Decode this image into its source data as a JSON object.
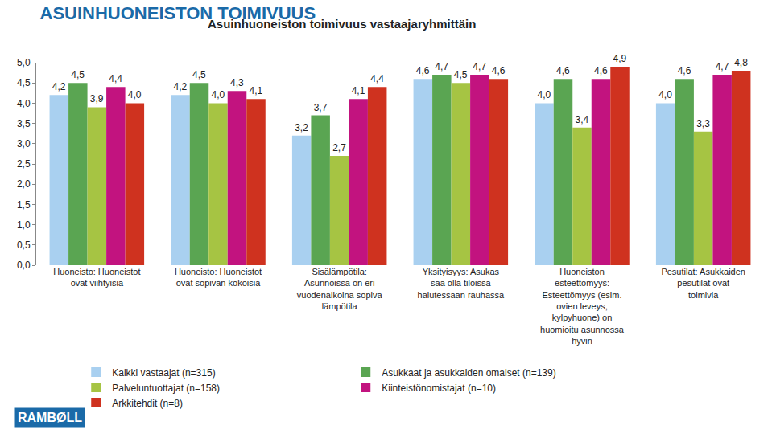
{
  "chart_data": {
    "type": "bar",
    "title": "ASUINHUONEISTON TOIMIVUUS",
    "subtitle": "Asuinhuoneiston toimivuus vastaajaryhmittäin",
    "categories": [
      "Huoneisto: Huoneistot ovat viihtyisiä",
      "Huoneisto: Huoneistot ovat sopivan kokoisia",
      "Sisälämpötila: Asunnoissa on eri vuodenaikoina sopiva lämpötila",
      "Yksityisyys: Asukas saa olla tiloissa halutessaan rauhassa",
      "Huoneiston esteettömyys: Esteettömyys (esim. ovien leveys, kylpyhuone) on huomioitu asunnossa hyvin",
      "Pesutilat: Asukkaiden pesutilat ovat toimivia"
    ],
    "series": [
      {
        "name": "Kaikki vastaajat (n=315)",
        "color": "#a9d0f0",
        "values": [
          4.2,
          4.2,
          3.2,
          4.6,
          4.0,
          4.0
        ],
        "value_labels": [
          "4,2",
          "4,2",
          "3,2",
          "4,6",
          "4,0",
          "4,0"
        ]
      },
      {
        "name": "Asukkaat ja asukkaiden omaiset (n=139)",
        "color": "#5aa552",
        "values": [
          4.5,
          4.5,
          3.7,
          4.7,
          4.6,
          4.6
        ],
        "value_labels": [
          "4,5",
          "4,5",
          "3,7",
          "4,7",
          "4,6",
          "4,6"
        ]
      },
      {
        "name": "Palveluntuottajat (n=158)",
        "color": "#a6c443",
        "values": [
          3.9,
          4.0,
          2.7,
          4.5,
          3.4,
          3.3
        ],
        "value_labels": [
          "3,9",
          "4,0",
          "2,7",
          "4,5",
          "3,4",
          "3,3"
        ]
      },
      {
        "name": "Kiinteistönomistajat (n=10)",
        "color": "#c2137f",
        "values": [
          4.4,
          4.3,
          4.1,
          4.7,
          4.6,
          4.7
        ],
        "value_labels": [
          "4,4",
          "4,3",
          "4,1",
          "4,7",
          "4,6",
          "4,7"
        ]
      },
      {
        "name": "Arkkitehdit (n=8)",
        "color": "#cf321f",
        "values": [
          4.0,
          4.1,
          4.4,
          4.6,
          4.9,
          4.8
        ],
        "value_labels": [
          "4,0",
          "4,1",
          "4,4",
          "4,6",
          "4,9",
          "4,8"
        ]
      }
    ],
    "ylim": [
      0,
      5
    ],
    "yticks": [
      {
        "value": 0,
        "label": "0,0"
      },
      {
        "value": 0.5,
        "label": "0,5"
      },
      {
        "value": 1,
        "label": "1,0"
      },
      {
        "value": 1.5,
        "label": "1,5"
      },
      {
        "value": 2,
        "label": "2,0"
      },
      {
        "value": 2.5,
        "label": "2,5"
      },
      {
        "value": 3,
        "label": "3,0"
      },
      {
        "value": 3.5,
        "label": "3,5"
      },
      {
        "value": 4,
        "label": "4,0"
      },
      {
        "value": 4.5,
        "label": "4,5"
      },
      {
        "value": 5,
        "label": "5,0"
      }
    ],
    "grid": false,
    "legend": "bottom",
    "data_labels": true,
    "annotations": [
      "RAMBØLL"
    ]
  }
}
